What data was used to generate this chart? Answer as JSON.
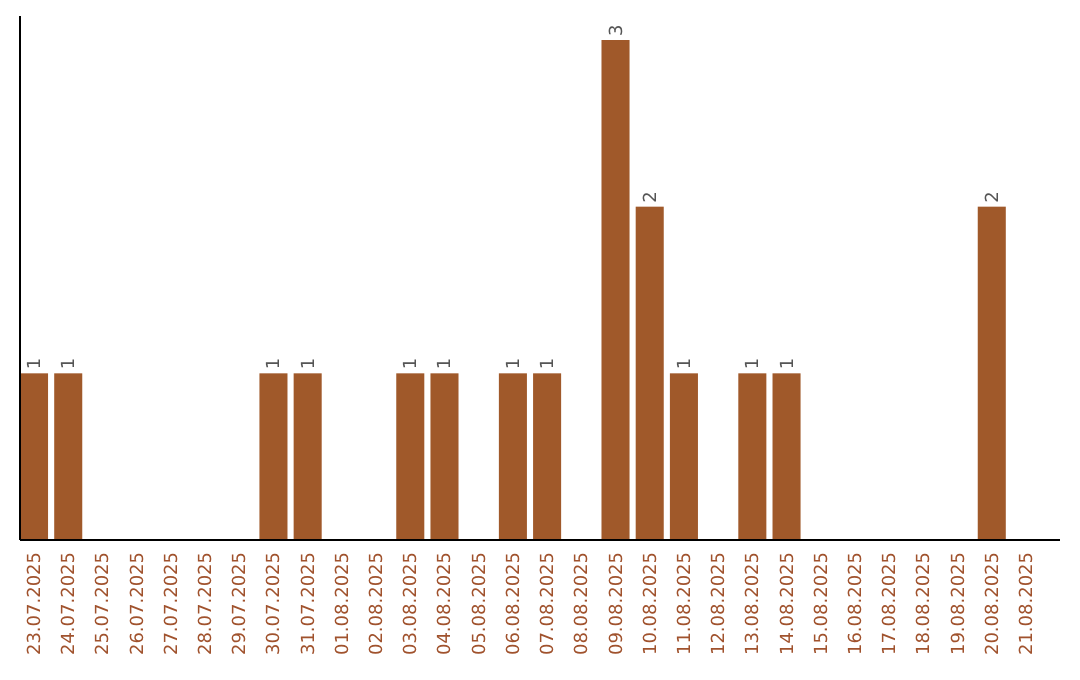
{
  "chart_data": {
    "type": "bar",
    "categories": [
      "23.07.2025",
      "24.07.2025",
      "25.07.2025",
      "26.07.2025",
      "27.07.2025",
      "28.07.2025",
      "29.07.2025",
      "30.07.2025",
      "31.07.2025",
      "01.08.2025",
      "02.08.2025",
      "03.08.2025",
      "04.08.2025",
      "05.08.2025",
      "06.08.2025",
      "07.08.2025",
      "08.08.2025",
      "09.08.2025",
      "10.08.2025",
      "11.08.2025",
      "12.08.2025",
      "13.08.2025",
      "14.08.2025",
      "15.08.2025",
      "16.08.2025",
      "17.08.2025",
      "18.08.2025",
      "19.08.2025",
      "20.08.2025",
      "21.08.2025"
    ],
    "values": [
      1,
      1,
      0,
      0,
      0,
      0,
      0,
      1,
      1,
      0,
      0,
      1,
      1,
      0,
      1,
      1,
      0,
      3,
      2,
      1,
      0,
      1,
      1,
      0,
      0,
      0,
      0,
      0,
      2,
      0
    ],
    "value_labels": [
      "1",
      "1",
      null,
      null,
      null,
      null,
      null,
      "1",
      "1",
      null,
      null,
      "1",
      "1",
      null,
      "1",
      "1",
      null,
      "3",
      "2",
      "1",
      null,
      "1",
      "1",
      null,
      null,
      null,
      null,
      null,
      "2",
      null
    ],
    "color": "#a0592a",
    "grid": false
  }
}
